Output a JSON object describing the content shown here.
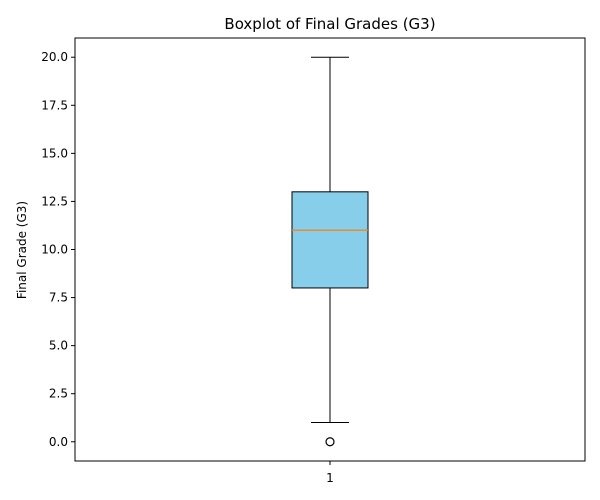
{
  "chart_data": {
    "type": "box",
    "title": "Boxplot of Final Grades (G3)",
    "xlabel": "",
    "ylabel": "Final Grade (G3)",
    "ylim": [
      -1.0,
      21.0
    ],
    "yticks": [
      "0.0",
      "2.5",
      "5.0",
      "7.5",
      "10.0",
      "12.5",
      "15.0",
      "17.5",
      "20.0"
    ],
    "ytick_values": [
      0,
      2.5,
      5,
      7.5,
      10,
      12.5,
      15,
      17.5,
      20
    ],
    "categories": [
      "1"
    ],
    "boxes": [
      {
        "category": "1",
        "whisker_low": 1,
        "q1": 8,
        "median": 11,
        "q3": 13,
        "whisker_high": 20,
        "outliers": [
          0
        ]
      }
    ],
    "grid": false,
    "colors": {
      "box_fill": "#87ceeb",
      "box_edge": "#000000",
      "median": "#ff7f0e",
      "whisker": "#000000",
      "outlier_edge": "#000000"
    }
  }
}
